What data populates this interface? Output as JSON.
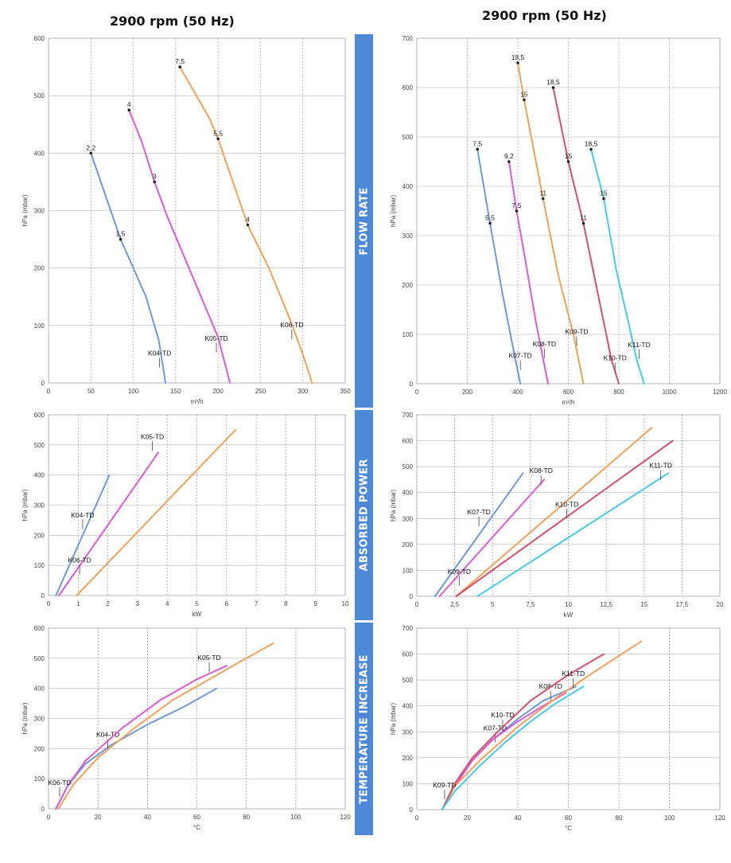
{
  "titles": {
    "left": "2900 rpm (50 Hz)",
    "right": "2900 rpm (50 Hz)"
  },
  "bands": {
    "flow_rate": "FLOW RATE",
    "absorbed_power": "ABSORBED POWER",
    "temperature_increase": "TEMPERATURE INCREASE"
  },
  "colors": {
    "K04-TD": "#6e9ad8",
    "K05-TD": "#da5ad6",
    "K06-TD": "#efa15c",
    "K07-TD": "#6e9ad8",
    "K08-TD": "#da5ad6",
    "K09-TD": "#efa15c",
    "K10-TD": "#d2506b",
    "K11-TD": "#47c9e6",
    "band": "#4f88d6"
  },
  "chart_data": [
    {
      "id": "flow-left",
      "type": "line",
      "xlabel": "m³/h",
      "ylabel": "hPa (mbar)",
      "xlim": [
        0,
        350
      ],
      "ylim": [
        0,
        600
      ],
      "xticks": [
        0,
        50,
        100,
        150,
        200,
        250,
        300,
        350
      ],
      "yticks": [
        0,
        100,
        200,
        300,
        400,
        500,
        600
      ],
      "series": [
        {
          "name": "K04-TD",
          "points": [
            [
              50,
              400
            ],
            [
              85,
              250
            ],
            [
              100,
              200
            ],
            [
              115,
              150
            ],
            [
              130,
              75
            ],
            [
              138,
              0
            ]
          ],
          "markers": [
            [
              50,
              400,
              "2,2"
            ],
            [
              85,
              250,
              "1,5"
            ]
          ],
          "label_at": [
            131,
            27
          ]
        },
        {
          "name": "K05-TD",
          "points": [
            [
              95,
              475
            ],
            [
              110,
              420
            ],
            [
              125,
              350
            ],
            [
              140,
              290
            ],
            [
              160,
              220
            ],
            [
              180,
              150
            ],
            [
              200,
              80
            ],
            [
              214,
              0
            ]
          ],
          "markers": [
            [
              95,
              475,
              "4"
            ],
            [
              125,
              350,
              "3"
            ]
          ],
          "label_at": [
            198,
            53
          ]
        },
        {
          "name": "K06-TD",
          "points": [
            [
              155,
              550
            ],
            [
              190,
              460
            ],
            [
              200,
              425
            ],
            [
              235,
              275
            ],
            [
              260,
              200
            ],
            [
              285,
              110
            ],
            [
              300,
              50
            ],
            [
              311,
              0
            ]
          ],
          "markers": [
            [
              155,
              550,
              "7,5"
            ],
            [
              200,
              425,
              "5,5"
            ],
            [
              235,
              275,
              "4"
            ]
          ],
          "label_at": [
            287,
            76
          ]
        }
      ]
    },
    {
      "id": "flow-right",
      "type": "line",
      "xlabel": "m³/h",
      "ylabel": "hPa (mbar)",
      "xlim": [
        0,
        1200
      ],
      "ylim": [
        0,
        700
      ],
      "xticks": [
        0,
        200,
        400,
        600,
        800,
        1000,
        1200
      ],
      "yticks": [
        0,
        100,
        200,
        300,
        400,
        500,
        600,
        700
      ],
      "series": [
        {
          "name": "K07-TD",
          "points": [
            [
              240,
              475
            ],
            [
              290,
              325
            ],
            [
              340,
              180
            ],
            [
              390,
              50
            ],
            [
              410,
              0
            ]
          ],
          "markers": [
            [
              240,
              475,
              "7,5"
            ],
            [
              290,
              325,
              "5,5"
            ]
          ],
          "label_at": [
            410,
            28
          ]
        },
        {
          "name": "K08-TD",
          "points": [
            [
              365,
              450
            ],
            [
              395,
              350
            ],
            [
              430,
              250
            ],
            [
              470,
              130
            ],
            [
              500,
              50
            ],
            [
              520,
              0
            ]
          ],
          "markers": [
            [
              365,
              450,
              "9,2"
            ],
            [
              395,
              350,
              "7,5"
            ]
          ],
          "label_at": [
            505,
            52
          ]
        },
        {
          "name": "K09-TD",
          "points": [
            [
              400,
              650
            ],
            [
              425,
              575
            ],
            [
              500,
              375
            ],
            [
              560,
              220
            ],
            [
              620,
              100
            ],
            [
              660,
              0
            ]
          ],
          "markers": [
            [
              400,
              650,
              "18,5"
            ],
            [
              425,
              575,
              "15"
            ],
            [
              500,
              375,
              "11"
            ]
          ],
          "label_at": [
            633,
            77
          ]
        },
        {
          "name": "K10-TD",
          "points": [
            [
              540,
              600
            ],
            [
              600,
              450
            ],
            [
              660,
              325
            ],
            [
              720,
              175
            ],
            [
              770,
              50
            ],
            [
              800,
              0
            ]
          ],
          "markers": [
            [
              540,
              600,
              "18,5"
            ],
            [
              600,
              450,
              "15"
            ],
            [
              660,
              325,
              "11"
            ]
          ],
          "label_at": [
            785,
            23
          ]
        },
        {
          "name": "K11-TD",
          "points": [
            [
              690,
              475
            ],
            [
              740,
              375
            ],
            [
              790,
              230
            ],
            [
              840,
              120
            ],
            [
              870,
              50
            ],
            [
              900,
              0
            ]
          ],
          "markers": [
            [
              690,
              475,
              "18,5"
            ],
            [
              740,
              375,
              "15"
            ]
          ],
          "label_at": [
            880,
            50
          ]
        }
      ]
    },
    {
      "id": "power-left",
      "type": "line",
      "xlabel": "kW",
      "ylabel": "hPa (mbar)",
      "xlim": [
        0,
        10
      ],
      "ylim": [
        0,
        600
      ],
      "xticks": [
        0,
        1,
        2,
        3,
        4,
        5,
        6,
        7,
        8,
        9,
        10
      ],
      "yticks": [
        0,
        100,
        200,
        300,
        400,
        500,
        600
      ],
      "series": [
        {
          "name": "K04-TD",
          "points": [
            [
              0.25,
              0
            ],
            [
              2.05,
              400
            ]
          ],
          "label_at": [
            1.15,
            220
          ]
        },
        {
          "name": "K05-TD",
          "points": [
            [
              0.35,
              0
            ],
            [
              3.7,
              475
            ]
          ],
          "label_at": [
            3.5,
            480
          ]
        },
        {
          "name": "K06-TD",
          "points": [
            [
              0.95,
              0
            ],
            [
              6.3,
              550
            ]
          ],
          "label_at": [
            1.05,
            70
          ]
        }
      ]
    },
    {
      "id": "power-right",
      "type": "line",
      "xlabel": "kW",
      "ylabel": "hPa (mbar)",
      "xlim": [
        0,
        20
      ],
      "ylim": [
        0,
        700
      ],
      "xticks": [
        0,
        2.5,
        5,
        7.5,
        10,
        12.5,
        15,
        17.5,
        20
      ],
      "yticks": [
        0,
        100,
        200,
        300,
        400,
        500,
        600,
        700
      ],
      "series": [
        {
          "name": "K07-TD",
          "points": [
            [
              1.2,
              0
            ],
            [
              7,
              475
            ]
          ],
          "label_at": [
            4.1,
            270
          ]
        },
        {
          "name": "K08-TD",
          "points": [
            [
              1.5,
              0
            ],
            [
              8.4,
              450
            ]
          ],
          "label_at": [
            8.2,
            430
          ]
        },
        {
          "name": "K09-TD",
          "points": [
            [
              2.6,
              0
            ],
            [
              15.5,
              650
            ]
          ],
          "label_at": [
            2.8,
            40
          ]
        },
        {
          "name": "K10-TD",
          "points": [
            [
              2.6,
              0
            ],
            [
              16.9,
              600
            ]
          ],
          "label_at": [
            9.9,
            300
          ]
        },
        {
          "name": "K11-TD",
          "points": [
            [
              4.0,
              0
            ],
            [
              16.6,
              475
            ]
          ],
          "label_at": [
            16.1,
            450
          ]
        }
      ]
    },
    {
      "id": "temp-left",
      "type": "line",
      "xlabel": "°C",
      "ylabel": "hPa (mbar)",
      "xlim": [
        0,
        120
      ],
      "ylim": [
        0,
        600
      ],
      "xticks": [
        0,
        20,
        40,
        60,
        80,
        100,
        120
      ],
      "yticks": [
        0,
        100,
        200,
        300,
        400,
        500,
        600
      ],
      "series": [
        {
          "name": "K04-TD",
          "points": [
            [
              3,
              0
            ],
            [
              8,
              80
            ],
            [
              15,
              150
            ],
            [
              25,
              210
            ],
            [
              40,
              280
            ],
            [
              55,
              340
            ],
            [
              68,
              400
            ]
          ],
          "label_at": [
            24,
            200
          ]
        },
        {
          "name": "K05-TD",
          "points": [
            [
              3,
              0
            ],
            [
              8,
              80
            ],
            [
              15,
              160
            ],
            [
              30,
              270
            ],
            [
              45,
              360
            ],
            [
              60,
              430
            ],
            [
              72,
              475
            ]
          ],
          "label_at": [
            65,
            455
          ]
        },
        {
          "name": "K06-TD",
          "points": [
            [
              4,
              0
            ],
            [
              10,
              80
            ],
            [
              20,
              170
            ],
            [
              35,
              270
            ],
            [
              50,
              360
            ],
            [
              65,
              430
            ],
            [
              80,
              500
            ],
            [
              91,
              550
            ]
          ],
          "label_at": [
            4.5,
            40
          ]
        }
      ]
    },
    {
      "id": "temp-right",
      "type": "line",
      "xlabel": "°C",
      "ylabel": "hPa (mbar)",
      "xlim": [
        0,
        120
      ],
      "ylim": [
        0,
        700
      ],
      "xticks": [
        0,
        20,
        40,
        60,
        80,
        100,
        120
      ],
      "yticks": [
        0,
        100,
        200,
        300,
        400,
        500,
        600,
        700
      ],
      "series": [
        {
          "name": "K07-TD",
          "points": [
            [
              10,
              0
            ],
            [
              15,
              90
            ],
            [
              22,
              190
            ],
            [
              30,
              270
            ],
            [
              40,
              350
            ],
            [
              50,
              420
            ],
            [
              63,
              475
            ]
          ],
          "label_at": [
            31,
            260
          ]
        },
        {
          "name": "K08-TD",
          "points": [
            [
              10,
              0
            ],
            [
              15,
              90
            ],
            [
              22,
              190
            ],
            [
              30,
              270
            ],
            [
              40,
              340
            ],
            [
              50,
              400
            ],
            [
              59,
              450
            ]
          ],
          "label_at": [
            53,
            420
          ]
        },
        {
          "name": "K09-TD",
          "points": [
            [
              10,
              0
            ],
            [
              15,
              90
            ],
            [
              25,
              190
            ],
            [
              40,
              320
            ],
            [
              55,
              430
            ],
            [
              70,
              530
            ],
            [
              89,
              650
            ]
          ],
          "label_at": [
            11,
            40
          ]
        },
        {
          "name": "K10-TD",
          "points": [
            [
              10,
              0
            ],
            [
              15,
              100
            ],
            [
              22,
              200
            ],
            [
              32,
              300
            ],
            [
              45,
              420
            ],
            [
              60,
              520
            ],
            [
              74,
              600
            ]
          ],
          "label_at": [
            34,
            310
          ]
        },
        {
          "name": "K11-TD",
          "points": [
            [
              10,
              0
            ],
            [
              15,
              70
            ],
            [
              25,
              170
            ],
            [
              35,
              260
            ],
            [
              45,
              340
            ],
            [
              55,
              410
            ],
            [
              66,
              475
            ]
          ],
          "label_at": [
            62,
            470
          ]
        }
      ]
    }
  ]
}
